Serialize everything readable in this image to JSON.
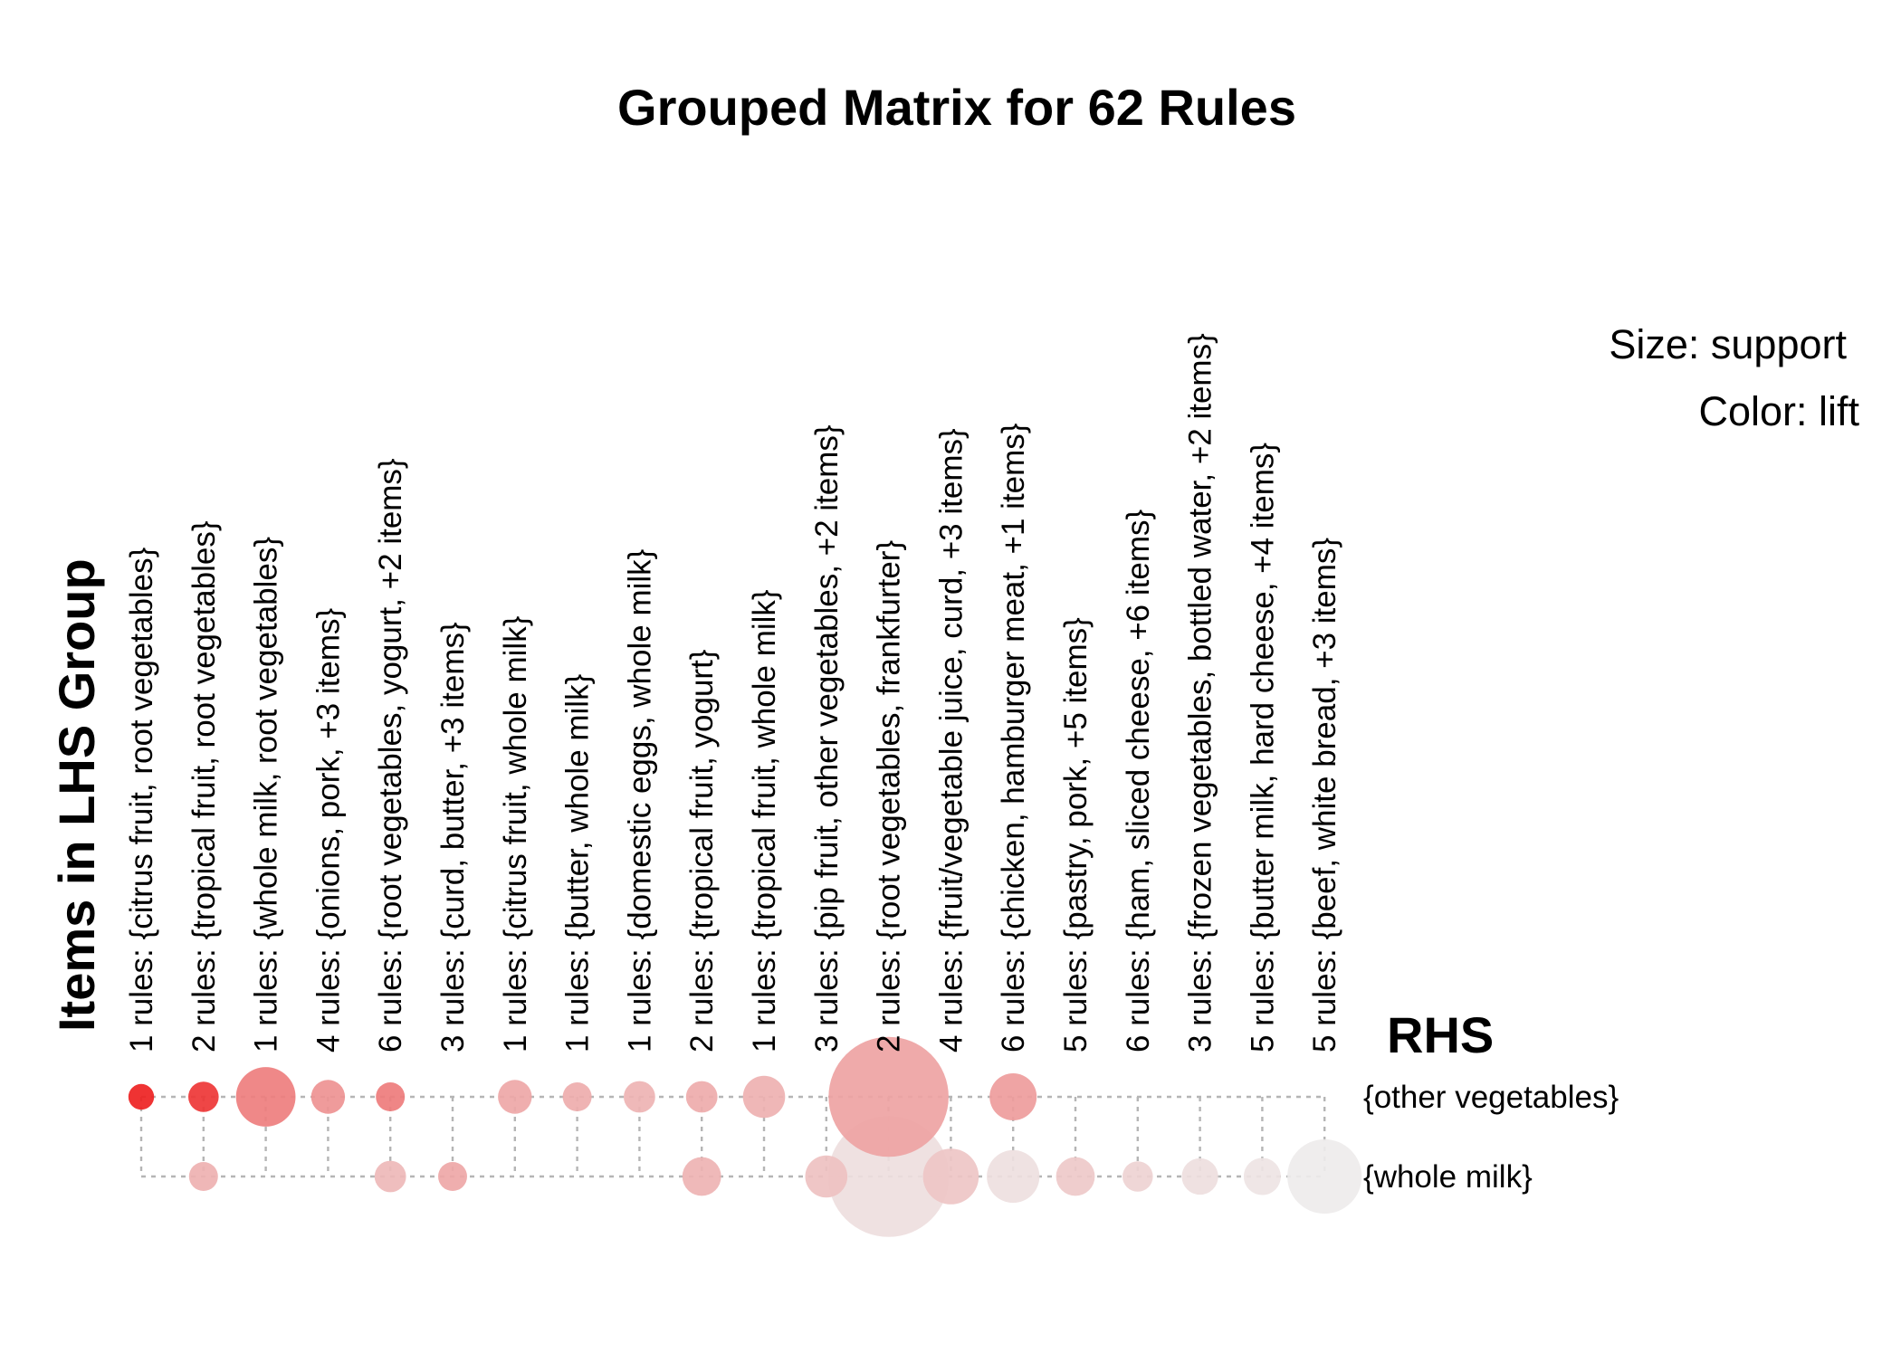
{
  "chart_data": {
    "type": "scatter",
    "title": "Grouped Matrix for 62 Rules",
    "xlabel": "Items in LHS Group",
    "ylabel": "RHS",
    "legend": {
      "size": "Size: support",
      "color": "Color: lift",
      "placement": "top-right"
    },
    "lhs_groups": [
      "1 rules: {citrus fruit, root vegetables}",
      "2 rules: {tropical fruit, root vegetables}",
      "1 rules: {whole milk, root vegetables}",
      "4 rules: {onions, pork, +3 items}",
      "6 rules: {root vegetables, yogurt, +2 items}",
      "3 rules: {curd, butter, +3 items}",
      "1 rules: {citrus fruit, whole milk}",
      "1 rules: {butter, whole milk}",
      "1 rules: {domestic eggs, whole milk}",
      "2 rules: {tropical fruit, yogurt}",
      "1 rules: {tropical fruit, whole milk}",
      "3 rules: {pip fruit, other vegetables, +2 items}",
      "2 rules: {root vegetables, frankfurter}",
      "4 rules: {fruit/vegetable juice, curd, +3 items}",
      "6 rules: {chicken, hamburger meat, +1 items}",
      "5 rules: {pastry, pork, +5 items}",
      "6 rules: {ham, sliced cheese, +6 items}",
      "3 rules: {frozen vegetables, bottled water, +2 items}",
      "5 rules: {butter milk, hard cheese, +4 items}",
      "5 rules: {beef, white bread, +3 items}"
    ],
    "rhs_items": [
      "{other vegetables}",
      "{whole milk}"
    ],
    "color_scale": {
      "low": "#eeeeee",
      "high": "#ee2222"
    },
    "points": [
      {
        "lhs": 0,
        "rhs": 0,
        "support": 0.3,
        "lift": 1.0
      },
      {
        "lhs": 1,
        "rhs": 0,
        "support": 0.42,
        "lift": 0.9
      },
      {
        "lhs": 2,
        "rhs": 0,
        "support": 1.6,
        "lift": 0.55
      },
      {
        "lhs": 3,
        "rhs": 0,
        "support": 0.52,
        "lift": 0.45
      },
      {
        "lhs": 4,
        "rhs": 0,
        "support": 0.38,
        "lift": 0.56
      },
      {
        "lhs": 6,
        "rhs": 0,
        "support": 0.52,
        "lift": 0.35
      },
      {
        "lhs": 7,
        "rhs": 0,
        "support": 0.38,
        "lift": 0.32
      },
      {
        "lhs": 8,
        "rhs": 0,
        "support": 0.45,
        "lift": 0.29
      },
      {
        "lhs": 9,
        "rhs": 0,
        "support": 0.45,
        "lift": 0.33
      },
      {
        "lhs": 10,
        "rhs": 0,
        "support": 0.8,
        "lift": 0.3
      },
      {
        "lhs": 12,
        "rhs": 0,
        "support": 6.5,
        "lift": 0.37
      },
      {
        "lhs": 14,
        "rhs": 0,
        "support": 1.0,
        "lift": 0.4
      },
      {
        "lhs": 1,
        "rhs": 1,
        "support": 0.38,
        "lift": 0.3
      },
      {
        "lhs": 4,
        "rhs": 1,
        "support": 0.45,
        "lift": 0.26
      },
      {
        "lhs": 5,
        "rhs": 1,
        "support": 0.38,
        "lift": 0.35
      },
      {
        "lhs": 9,
        "rhs": 1,
        "support": 0.68,
        "lift": 0.29
      },
      {
        "lhs": 11,
        "rhs": 1,
        "support": 0.8,
        "lift": 0.22
      },
      {
        "lhs": 12,
        "rhs": 1,
        "support": 6.6,
        "lift": 0.08
      },
      {
        "lhs": 13,
        "rhs": 1,
        "support": 1.4,
        "lift": 0.2
      },
      {
        "lhs": 14,
        "rhs": 1,
        "support": 1.25,
        "lift": 0.07
      },
      {
        "lhs": 15,
        "rhs": 1,
        "support": 0.68,
        "lift": 0.18
      },
      {
        "lhs": 16,
        "rhs": 1,
        "support": 0.42,
        "lift": 0.13
      },
      {
        "lhs": 17,
        "rhs": 1,
        "support": 0.6,
        "lift": 0.08
      },
      {
        "lhs": 18,
        "rhs": 1,
        "support": 0.62,
        "lift": 0.05
      },
      {
        "lhs": 19,
        "rhs": 1,
        "support": 2.5,
        "lift": 0.01
      }
    ]
  }
}
